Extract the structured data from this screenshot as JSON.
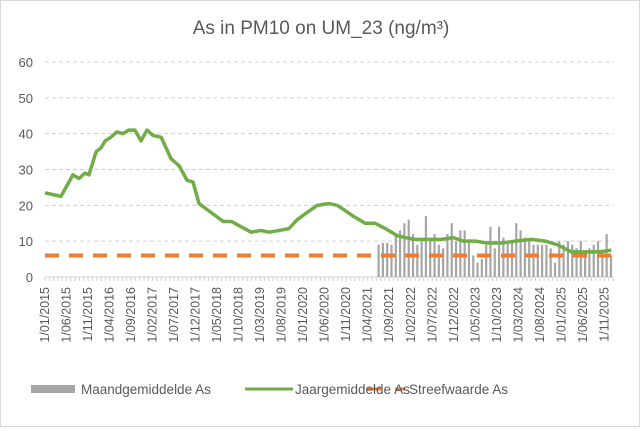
{
  "chart_data": {
    "type": "bar+line",
    "title": "As in PM10 on UM_23 (ng/m³)",
    "ylim": [
      0,
      60
    ],
    "yticks": [
      0,
      10,
      20,
      30,
      40,
      50,
      60
    ],
    "grid": true,
    "legend_position": "bottom",
    "x_start": "2015-01",
    "n_months": 132,
    "xtick_labels": [
      "1/01/2015",
      "1/06/2015",
      "1/11/2015",
      "1/04/2016",
      "1/09/2016",
      "1/02/2017",
      "1/07/2017",
      "1/12/2017",
      "1/05/2018",
      "1/10/2018",
      "1/03/2019",
      "1/08/2019",
      "1/01/2020",
      "1/06/2020",
      "1/11/2020",
      "1/04/2021",
      "1/09/2021",
      "1/02/2022",
      "1/07/2022",
      "1/12/2022",
      "1/05/2023",
      "1/10/2023",
      "1/03/2024",
      "1/08/2024",
      "1/01/2025",
      "1/06/2025",
      "1/11/2025"
    ],
    "series": [
      {
        "name": "Maandgemiddelde As",
        "type": "bar",
        "color": "#a6a6a6",
        "start_month_index": 77,
        "values": [
          9,
          9.5,
          9.5,
          9,
          12,
          13,
          15,
          16,
          12,
          9,
          10,
          17,
          11,
          12,
          9,
          8,
          12,
          15,
          10,
          13,
          13,
          10,
          6,
          4,
          5,
          9,
          14,
          8,
          14,
          11,
          10,
          10,
          15,
          13,
          11,
          10,
          9,
          9,
          9,
          9,
          8,
          4,
          10,
          9,
          10,
          9,
          8,
          10,
          7,
          8,
          9,
          10,
          7,
          12,
          6
        ]
      },
      {
        "name": "Jaargemiddelde As",
        "type": "line",
        "color": "#70ad47",
        "points": [
          [
            0,
            23.5
          ],
          [
            3.7,
            22.5
          ],
          [
            6.5,
            28.5
          ],
          [
            7.9,
            27.5
          ],
          [
            9.3,
            29
          ],
          [
            10.2,
            28.5
          ],
          [
            11.9,
            35
          ],
          [
            13,
            36
          ],
          [
            14,
            38
          ],
          [
            15.3,
            39
          ],
          [
            16.7,
            40.5
          ],
          [
            18.1,
            40
          ],
          [
            19.5,
            41
          ],
          [
            20.9,
            41
          ],
          [
            22.3,
            38
          ],
          [
            23.7,
            41
          ],
          [
            25.1,
            39.5
          ],
          [
            27,
            39
          ],
          [
            29.3,
            33
          ],
          [
            31.2,
            31
          ],
          [
            33,
            27
          ],
          [
            34.4,
            26.5
          ],
          [
            35.8,
            20.5
          ],
          [
            38.6,
            18
          ],
          [
            41.4,
            15.5
          ],
          [
            43.3,
            15.5
          ],
          [
            45.6,
            14
          ],
          [
            47.9,
            12.5
          ],
          [
            50.2,
            13
          ],
          [
            52.1,
            12.5
          ],
          [
            54.4,
            13
          ],
          [
            56.7,
            13.5
          ],
          [
            58.6,
            16
          ],
          [
            60.9,
            18
          ],
          [
            63.3,
            20
          ],
          [
            66,
            20.5
          ],
          [
            67.9,
            20
          ],
          [
            69.8,
            18.5
          ],
          [
            71.6,
            17
          ],
          [
            74.4,
            15
          ],
          [
            76.7,
            15
          ],
          [
            79.1,
            13.5
          ],
          [
            81.9,
            11.5
          ],
          [
            83.7,
            11
          ],
          [
            86,
            10.5
          ],
          [
            88.4,
            10.5
          ],
          [
            92.1,
            10.5
          ],
          [
            94.9,
            11
          ],
          [
            97.2,
            10
          ],
          [
            100,
            10
          ],
          [
            102.8,
            9.5
          ],
          [
            106,
            9.5
          ],
          [
            109.3,
            10
          ],
          [
            113,
            10.5
          ],
          [
            116.3,
            10
          ],
          [
            119.1,
            9
          ],
          [
            122.3,
            7
          ],
          [
            125.6,
            7
          ],
          [
            128.8,
            7
          ],
          [
            131.6,
            7.5
          ]
        ]
      },
      {
        "name": "Streefwaarde As",
        "type": "line-dashed",
        "color": "#ed7d31",
        "value": 6
      }
    ]
  }
}
